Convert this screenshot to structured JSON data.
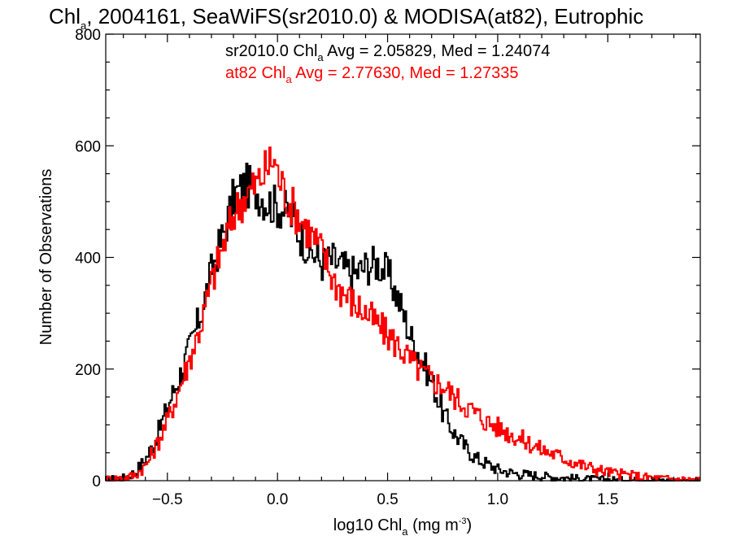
{
  "chart_data": {
    "type": "line",
    "title": {
      "lead": "Chl",
      "sub": "a",
      "rest": ", 2004161, SeaWiFS(sr2010.0) & MODISA(at82), Eutrophic"
    },
    "xlabel": {
      "lead": "log10 Chl",
      "sub": "a",
      "mid": " (mg m",
      "sup": "-3",
      "tail": ")"
    },
    "ylabel": "Number of Observations",
    "xlim": [
      -0.78,
      1.92
    ],
    "ylim": [
      0,
      800
    ],
    "xticks": [
      -0.5,
      0.0,
      0.5,
      1.0,
      1.5
    ],
    "xtick_labels": [
      "−0.5",
      "0.0",
      "0.5",
      "1.0",
      "1.5"
    ],
    "yticks": [
      0,
      200,
      400,
      600,
      800
    ],
    "ytick_labels": [
      "0",
      "200",
      "400",
      "600",
      "800"
    ],
    "grid": false,
    "legend_position": "top-center",
    "series": [
      {
        "color": "#000000",
        "legend": {
          "lead": "sr2010.0 Chl",
          "sub": "a",
          "rest": " Avg = 2.05829, Med = 1.24074"
        },
        "x": [
          -0.78,
          -0.7,
          -0.65,
          -0.6,
          -0.55,
          -0.5,
          -0.45,
          -0.4,
          -0.35,
          -0.3,
          -0.25,
          -0.2,
          -0.15,
          -0.1,
          -0.05,
          0.0,
          0.05,
          0.1,
          0.15,
          0.2,
          0.25,
          0.3,
          0.35,
          0.4,
          0.45,
          0.5,
          0.55,
          0.6,
          0.65,
          0.7,
          0.75,
          0.8,
          0.85,
          0.9,
          0.95,
          1.0,
          1.05,
          1.1,
          1.15,
          1.2,
          1.3,
          1.4,
          1.5,
          1.6,
          1.7,
          1.8,
          1.92
        ],
        "y": [
          2,
          5,
          15,
          40,
          80,
          135,
          185,
          240,
          300,
          380,
          440,
          510,
          530,
          520,
          500,
          490,
          480,
          440,
          410,
          390,
          395,
          380,
          370,
          385,
          390,
          370,
          320,
          260,
          220,
          175,
          120,
          85,
          60,
          40,
          30,
          20,
          15,
          12,
          10,
          8,
          5,
          3,
          2,
          1,
          1,
          0,
          0
        ]
      },
      {
        "color": "#ff0000",
        "legend": {
          "lead": "at82 Chl",
          "sub": "a",
          "rest": " Avg = 2.77630, Med = 1.27335"
        },
        "x": [
          -0.78,
          -0.7,
          -0.65,
          -0.6,
          -0.55,
          -0.5,
          -0.45,
          -0.4,
          -0.35,
          -0.3,
          -0.25,
          -0.2,
          -0.15,
          -0.1,
          -0.05,
          -0.02,
          0.0,
          0.05,
          0.1,
          0.15,
          0.2,
          0.25,
          0.3,
          0.35,
          0.4,
          0.45,
          0.5,
          0.55,
          0.6,
          0.65,
          0.7,
          0.75,
          0.8,
          0.85,
          0.9,
          0.95,
          1.0,
          1.05,
          1.1,
          1.15,
          1.2,
          1.25,
          1.3,
          1.35,
          1.4,
          1.45,
          1.5,
          1.55,
          1.6,
          1.65,
          1.7,
          1.8,
          1.92
        ],
        "y": [
          3,
          5,
          10,
          28,
          65,
          110,
          165,
          220,
          280,
          360,
          420,
          480,
          510,
          530,
          560,
          580,
          545,
          500,
          470,
          440,
          410,
          360,
          335,
          315,
          300,
          280,
          260,
          240,
          215,
          195,
          180,
          170,
          150,
          135,
          120,
          105,
          95,
          85,
          75,
          65,
          55,
          48,
          40,
          32,
          25,
          20,
          15,
          12,
          10,
          7,
          5,
          3,
          2
        ]
      }
    ]
  }
}
